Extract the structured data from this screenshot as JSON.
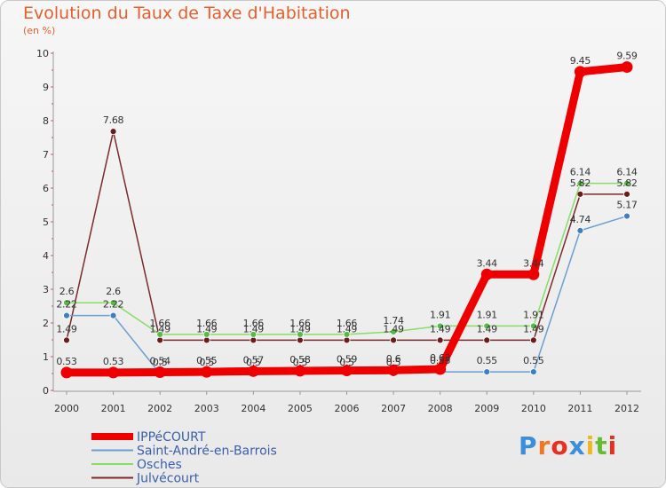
{
  "chart_data": {
    "type": "line",
    "title": "Evolution du Taux de Taxe d'Habitation",
    "ylabel": "(en %)",
    "xlabel": "",
    "ylim": [
      0,
      10
    ],
    "yticks": [
      "0",
      "1",
      "2",
      "3",
      "4",
      "5",
      "6",
      "7",
      "8",
      "9",
      "10"
    ],
    "categories": [
      "2000",
      "2001",
      "2002",
      "2003",
      "2004",
      "2005",
      "2006",
      "2007",
      "2008",
      "2009",
      "2010",
      "2011",
      "2012"
    ],
    "series": [
      {
        "name": "Julvécourt",
        "color": "#7a2a2a",
        "marker": "#6b1c1c",
        "values": [
          1.49,
          7.68,
          1.49,
          1.49,
          1.49,
          1.49,
          1.49,
          1.49,
          1.49,
          1.49,
          1.49,
          5.82,
          5.82
        ],
        "labels": [
          "1.49",
          "7.68",
          "1.49",
          "1.49",
          "1.49",
          "1.49",
          "1.49",
          "1.49",
          "1.49",
          "1.49",
          "1.49",
          "5.82",
          "5.82"
        ]
      },
      {
        "name": "Osches",
        "color": "#88dd66",
        "marker": "#55bb44",
        "values": [
          2.6,
          2.6,
          1.66,
          1.66,
          1.66,
          1.66,
          1.66,
          1.74,
          1.91,
          1.91,
          1.91,
          6.14,
          6.14
        ],
        "labels": [
          "2.6",
          "2.6",
          "1.66",
          "1.66",
          "1.66",
          "1.66",
          "1.66",
          "1.74",
          "1.91",
          "1.91",
          "1.91",
          "6.14",
          "6.14"
        ]
      },
      {
        "name": "Saint-André-en-Barrois",
        "color": "#6a9fd0",
        "marker": "#3f7fc0",
        "values": [
          2.22,
          2.22,
          0.5,
          0.5,
          0.5,
          0.5,
          0.5,
          0.5,
          0.55,
          0.55,
          0.55,
          4.74,
          5.17
        ],
        "labels": [
          "2.22",
          "2.22",
          "0.5",
          "0.5",
          "0.5",
          "0.5",
          "0.5",
          "0.5",
          "0.55",
          "0.55",
          "0.55",
          "4.74",
          "5.17"
        ]
      },
      {
        "name": "IPPéCOURT",
        "color": "#ee0000",
        "marker": "#ee0000",
        "values": [
          0.53,
          0.53,
          0.54,
          0.55,
          0.57,
          0.58,
          0.59,
          0.6,
          0.63,
          3.44,
          3.44,
          9.45,
          9.59
        ],
        "labels": [
          "0.53",
          "0.53",
          "0.54",
          "0.55",
          "0.57",
          "0.58",
          "0.59",
          "0.6",
          "0.63",
          "3.44",
          "3.44",
          "9.45",
          "9.59"
        ]
      }
    ],
    "legend_order": [
      "IPPéCOURT",
      "Saint-André-en-Barrois",
      "Osches",
      "Julvécourt"
    ],
    "legend_placement": "bottom-left",
    "grid": false
  },
  "brand": {
    "letters": [
      "P",
      "r",
      "o",
      "x",
      "i",
      "t",
      "i"
    ],
    "colors": [
      "#3a8fd8",
      "#f07820",
      "#e83020",
      "#3a8fd8",
      "#f0b820",
      "#66bb33",
      "#e83020"
    ]
  }
}
